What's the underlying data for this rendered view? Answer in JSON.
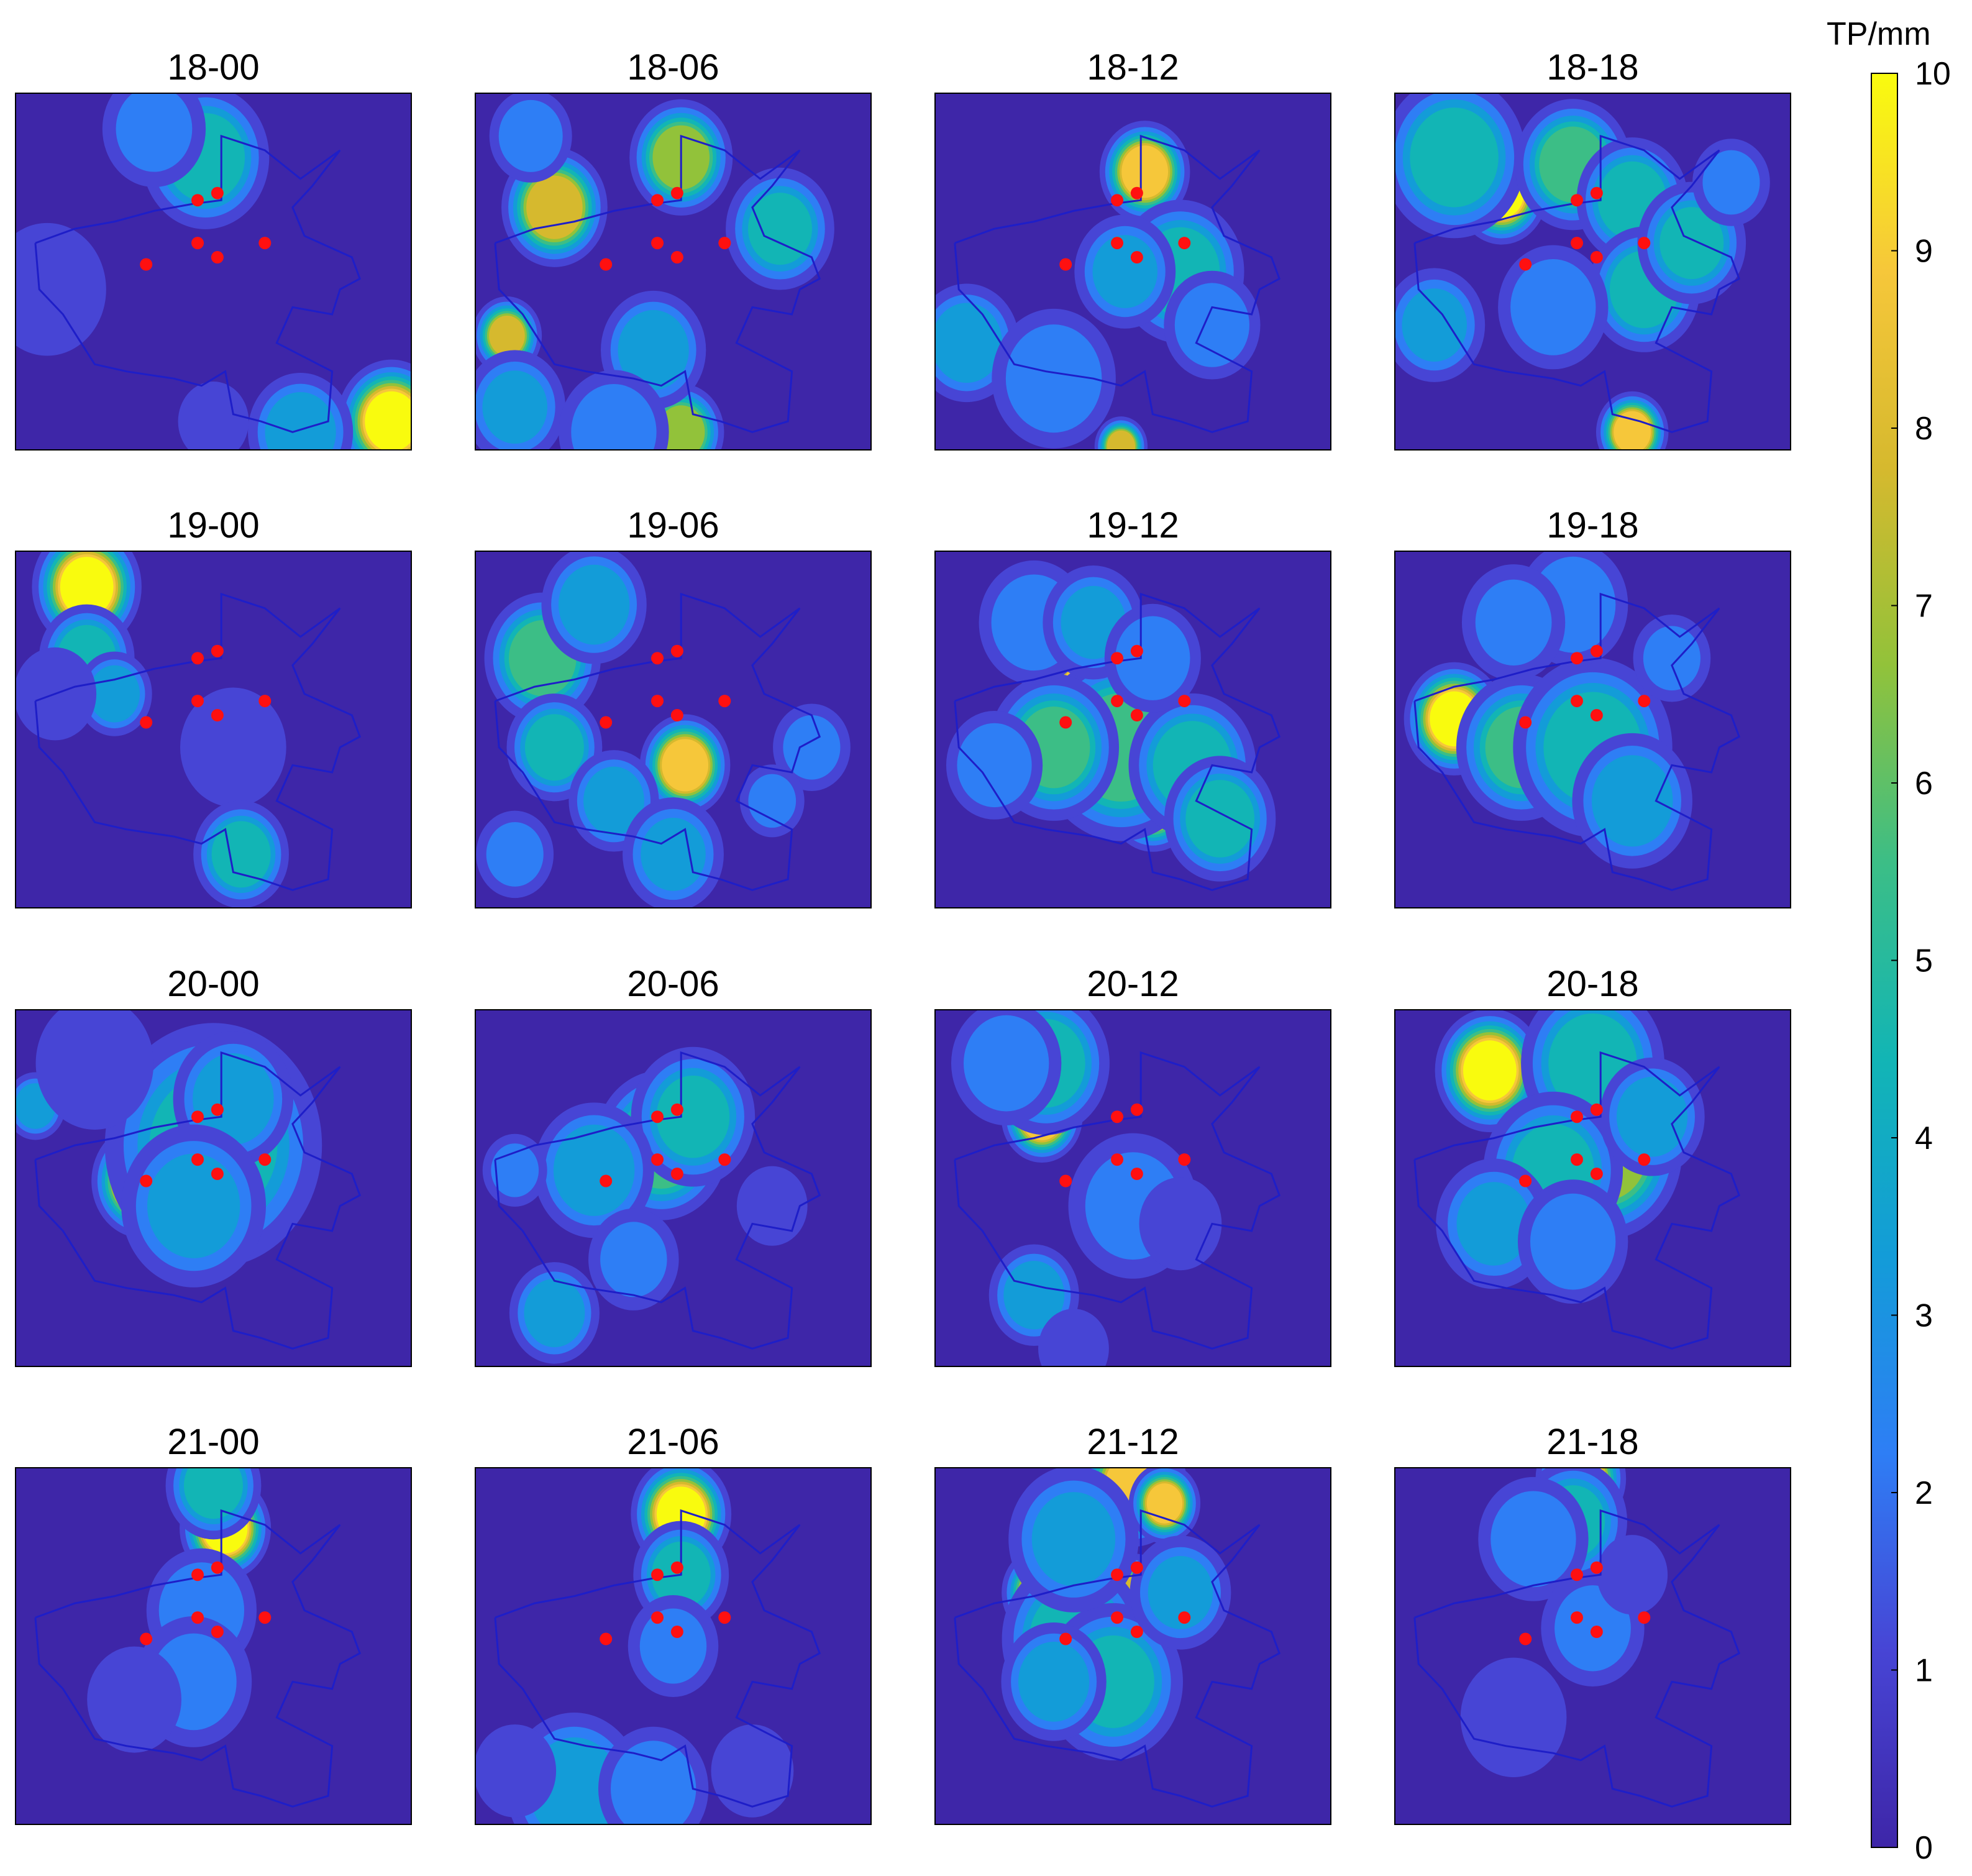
{
  "chart_data": {
    "type": "heatmap",
    "description_units": "TP/mm",
    "colorbar": {
      "label": "TP/mm",
      "min": 0,
      "max": 10,
      "ticks": [
        "0",
        "1",
        "2",
        "3",
        "4",
        "5",
        "6",
        "7",
        "8",
        "9",
        "10"
      ],
      "colormap": [
        "#3e26a8",
        "#4745d5",
        "#2e7ef5",
        "#139cd8",
        "#12b5b5",
        "#3cbe86",
        "#92c23a",
        "#d6b92e",
        "#f6c73a",
        "#f9fb0e"
      ]
    },
    "panels": [
      {
        "title": "18-00",
        "peak_mm": 9.5,
        "blobs": [
          [
            0.95,
            0.92,
            9.5,
            0.06
          ],
          [
            0.48,
            0.18,
            5.0,
            0.08
          ],
          [
            0.72,
            0.95,
            4.0,
            0.07
          ],
          [
            0.08,
            0.55,
            2.0,
            0.1
          ],
          [
            0.35,
            0.1,
            2.5,
            0.08
          ],
          [
            0.5,
            0.92,
            2.0,
            0.06
          ]
        ]
      },
      {
        "title": "18-06",
        "peak_mm": 8.0,
        "blobs": [
          [
            0.2,
            0.32,
            8.0,
            0.06
          ],
          [
            0.52,
            0.18,
            7.0,
            0.06
          ],
          [
            0.08,
            0.68,
            7.5,
            0.04
          ],
          [
            0.52,
            0.95,
            7.0,
            0.05
          ],
          [
            0.77,
            0.38,
            4.5,
            0.07
          ],
          [
            0.45,
            0.72,
            4.0,
            0.07
          ],
          [
            0.14,
            0.12,
            3.0,
            0.06
          ],
          [
            0.1,
            0.88,
            3.5,
            0.07
          ],
          [
            0.35,
            0.95,
            3.0,
            0.08
          ]
        ]
      },
      {
        "title": "18-12",
        "peak_mm": 9.0,
        "blobs": [
          [
            0.53,
            0.22,
            9.0,
            0.05
          ],
          [
            0.62,
            0.5,
            5.0,
            0.08
          ],
          [
            0.48,
            0.5,
            3.5,
            0.07
          ],
          [
            0.08,
            0.7,
            4.0,
            0.07
          ],
          [
            0.3,
            0.8,
            3.0,
            0.09
          ],
          [
            0.47,
            0.99,
            8.0,
            0.03
          ],
          [
            0.7,
            0.65,
            3.0,
            0.07
          ]
        ]
      },
      {
        "title": "18-18",
        "peak_mm": 9.5,
        "blobs": [
          [
            0.27,
            0.28,
            9.5,
            0.05
          ],
          [
            0.15,
            0.18,
            5.0,
            0.09
          ],
          [
            0.45,
            0.2,
            6.0,
            0.07
          ],
          [
            0.6,
            0.3,
            5.0,
            0.07
          ],
          [
            0.63,
            0.55,
            5.0,
            0.07
          ],
          [
            0.75,
            0.42,
            4.5,
            0.07
          ],
          [
            0.6,
            0.95,
            9.0,
            0.04
          ],
          [
            0.4,
            0.6,
            3.0,
            0.08
          ],
          [
            0.1,
            0.65,
            3.5,
            0.07
          ],
          [
            0.85,
            0.25,
            2.5,
            0.06
          ]
        ]
      },
      {
        "title": "19-00",
        "peak_mm": 9.5,
        "blobs": [
          [
            0.18,
            0.1,
            9.5,
            0.06
          ],
          [
            0.18,
            0.3,
            5.0,
            0.06
          ],
          [
            0.55,
            0.55,
            2.0,
            0.09
          ],
          [
            0.57,
            0.85,
            5.0,
            0.06
          ],
          [
            0.25,
            0.4,
            4.0,
            0.05
          ],
          [
            0.1,
            0.4,
            2.0,
            0.07
          ]
        ]
      },
      {
        "title": "19-06",
        "peak_mm": 9.0,
        "blobs": [
          [
            0.53,
            0.6,
            9.0,
            0.05
          ],
          [
            0.17,
            0.3,
            6.0,
            0.07
          ],
          [
            0.3,
            0.15,
            4.0,
            0.07
          ],
          [
            0.2,
            0.55,
            5.0,
            0.06
          ],
          [
            0.35,
            0.7,
            4.0,
            0.06
          ],
          [
            0.5,
            0.85,
            3.5,
            0.07
          ],
          [
            0.85,
            0.55,
            2.5,
            0.06
          ],
          [
            0.1,
            0.85,
            2.5,
            0.06
          ],
          [
            0.75,
            0.7,
            2.5,
            0.05
          ]
        ]
      },
      {
        "title": "19-12",
        "peak_mm": 9.0,
        "blobs": [
          [
            0.37,
            0.38,
            9.0,
            0.04
          ],
          [
            0.55,
            0.7,
            9.0,
            0.05
          ],
          [
            0.47,
            0.55,
            6.0,
            0.1
          ],
          [
            0.3,
            0.55,
            5.5,
            0.08
          ],
          [
            0.65,
            0.6,
            5.0,
            0.08
          ],
          [
            0.72,
            0.75,
            5.0,
            0.07
          ],
          [
            0.25,
            0.2,
            3.0,
            0.08
          ],
          [
            0.4,
            0.2,
            3.5,
            0.07
          ],
          [
            0.15,
            0.6,
            3.0,
            0.07
          ],
          [
            0.55,
            0.3,
            3.0,
            0.07
          ]
        ]
      },
      {
        "title": "19-18",
        "peak_mm": 9.5,
        "blobs": [
          [
            0.15,
            0.47,
            9.5,
            0.055
          ],
          [
            0.32,
            0.55,
            5.5,
            0.08
          ],
          [
            0.5,
            0.55,
            5.0,
            0.1
          ],
          [
            0.6,
            0.7,
            4.0,
            0.08
          ],
          [
            0.45,
            0.15,
            3.0,
            0.08
          ],
          [
            0.3,
            0.2,
            2.5,
            0.08
          ],
          [
            0.7,
            0.3,
            2.5,
            0.06
          ]
        ]
      },
      {
        "title": "20-00",
        "peak_mm": 10,
        "blobs": [
          [
            0.32,
            0.48,
            10,
            0.055
          ],
          [
            0.5,
            0.38,
            4.5,
            0.14
          ],
          [
            0.55,
            0.25,
            4.0,
            0.08
          ],
          [
            0.45,
            0.55,
            3.5,
            0.1
          ],
          [
            0.05,
            0.27,
            4.0,
            0.04
          ],
          [
            0.2,
            0.15,
            2.0,
            0.1
          ]
        ]
      },
      {
        "title": "20-06",
        "peak_mm": 9.5,
        "blobs": [
          [
            0.37,
            0.42,
            9.5,
            0.05
          ],
          [
            0.47,
            0.38,
            6.0,
            0.08
          ],
          [
            0.55,
            0.3,
            4.5,
            0.08
          ],
          [
            0.3,
            0.45,
            4.0,
            0.08
          ],
          [
            0.2,
            0.85,
            4.0,
            0.06
          ],
          [
            0.4,
            0.7,
            2.5,
            0.07
          ],
          [
            0.1,
            0.45,
            2.5,
            0.05
          ],
          [
            0.75,
            0.55,
            2.0,
            0.06
          ]
        ]
      },
      {
        "title": "20-12",
        "peak_mm": 9.0,
        "blobs": [
          [
            0.27,
            0.3,
            9.0,
            0.045
          ],
          [
            0.28,
            0.15,
            5.0,
            0.08
          ],
          [
            0.18,
            0.15,
            3.0,
            0.08
          ],
          [
            0.5,
            0.55,
            2.5,
            0.1
          ],
          [
            0.25,
            0.8,
            4.0,
            0.06
          ],
          [
            0.35,
            0.95,
            2.0,
            0.06
          ],
          [
            0.62,
            0.6,
            2.0,
            0.07
          ]
        ]
      },
      {
        "title": "20-18",
        "peak_mm": 9.5,
        "blobs": [
          [
            0.24,
            0.17,
            9.5,
            0.06
          ],
          [
            0.53,
            0.4,
            7.0,
            0.09
          ],
          [
            0.5,
            0.15,
            5.0,
            0.09
          ],
          [
            0.4,
            0.45,
            4.5,
            0.09
          ],
          [
            0.65,
            0.3,
            4.0,
            0.07
          ],
          [
            0.25,
            0.6,
            3.5,
            0.08
          ],
          [
            0.45,
            0.65,
            3.0,
            0.08
          ]
        ]
      },
      {
        "title": "21-00",
        "peak_mm": 9.5,
        "blobs": [
          [
            0.53,
            0.17,
            9.5,
            0.05
          ],
          [
            0.5,
            0.05,
            5.0,
            0.06
          ],
          [
            0.47,
            0.4,
            3.0,
            0.08
          ],
          [
            0.45,
            0.6,
            2.5,
            0.09
          ],
          [
            0.3,
            0.65,
            2.0,
            0.08
          ]
        ]
      },
      {
        "title": "21-06",
        "peak_mm": 9.5,
        "blobs": [
          [
            0.52,
            0.13,
            9.5,
            0.055
          ],
          [
            0.52,
            0.3,
            5.0,
            0.06
          ],
          [
            0.5,
            0.5,
            2.5,
            0.07
          ],
          [
            0.25,
            0.9,
            4.0,
            0.09
          ],
          [
            0.45,
            0.9,
            3.0,
            0.08
          ],
          [
            0.1,
            0.85,
            2.0,
            0.07
          ],
          [
            0.7,
            0.85,
            2.0,
            0.07
          ]
        ]
      },
      {
        "title": "21-12",
        "peak_mm": 9.0,
        "blobs": [
          [
            0.5,
            0.05,
            9.0,
            0.06
          ],
          [
            0.58,
            0.1,
            8.5,
            0.04
          ],
          [
            0.27,
            0.35,
            8.5,
            0.045
          ],
          [
            0.5,
            0.38,
            8.0,
            0.05
          ],
          [
            0.35,
            0.48,
            5.0,
            0.09
          ],
          [
            0.45,
            0.6,
            4.5,
            0.09
          ],
          [
            0.35,
            0.2,
            3.5,
            0.09
          ],
          [
            0.62,
            0.35,
            3.5,
            0.07
          ],
          [
            0.3,
            0.6,
            4.0,
            0.07
          ]
        ]
      },
      {
        "title": "21-18",
        "peak_mm": 9.0,
        "blobs": [
          [
            0.47,
            0.03,
            9.0,
            0.05
          ],
          [
            0.45,
            0.15,
            4.5,
            0.07
          ],
          [
            0.35,
            0.2,
            3.0,
            0.08
          ],
          [
            0.5,
            0.45,
            2.5,
            0.08
          ],
          [
            0.3,
            0.7,
            2.0,
            0.09
          ],
          [
            0.6,
            0.3,
            2.0,
            0.06
          ]
        ]
      }
    ],
    "stations": [
      [
        0.33,
        0.48
      ],
      [
        0.46,
        0.42
      ],
      [
        0.51,
        0.46
      ],
      [
        0.63,
        0.42
      ],
      [
        0.46,
        0.3
      ],
      [
        0.51,
        0.28
      ]
    ],
    "boundary": [
      [
        0.05,
        0.42
      ],
      [
        0.15,
        0.38
      ],
      [
        0.25,
        0.36
      ],
      [
        0.35,
        0.33
      ],
      [
        0.45,
        0.31
      ],
      [
        0.52,
        0.3
      ],
      [
        0.52,
        0.12
      ],
      [
        0.63,
        0.16
      ],
      [
        0.72,
        0.24
      ],
      [
        0.82,
        0.16
      ],
      [
        0.75,
        0.26
      ],
      [
        0.7,
        0.32
      ],
      [
        0.73,
        0.4
      ],
      [
        0.85,
        0.46
      ],
      [
        0.87,
        0.52
      ],
      [
        0.82,
        0.55
      ],
      [
        0.8,
        0.62
      ],
      [
        0.7,
        0.6
      ],
      [
        0.66,
        0.7
      ],
      [
        0.8,
        0.78
      ],
      [
        0.79,
        0.92
      ],
      [
        0.7,
        0.95
      ],
      [
        0.62,
        0.92
      ],
      [
        0.55,
        0.9
      ],
      [
        0.53,
        0.78
      ],
      [
        0.47,
        0.82
      ],
      [
        0.4,
        0.8
      ],
      [
        0.28,
        0.78
      ],
      [
        0.2,
        0.76
      ],
      [
        0.12,
        0.62
      ],
      [
        0.06,
        0.55
      ],
      [
        0.05,
        0.42
      ]
    ]
  }
}
